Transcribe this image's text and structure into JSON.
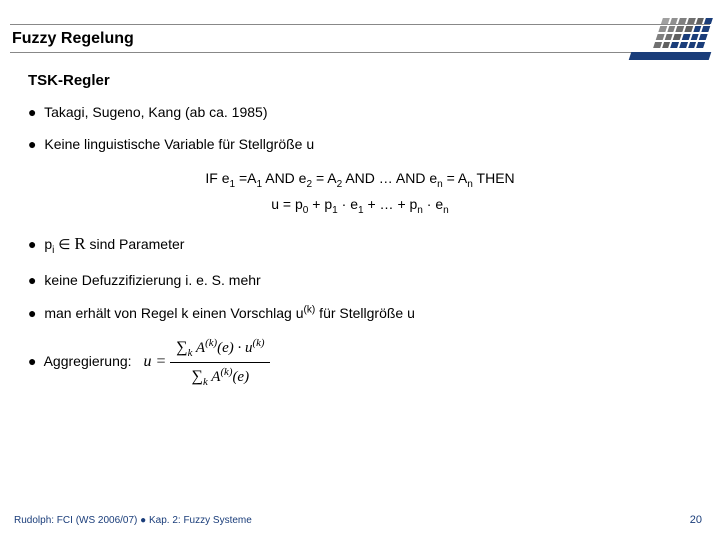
{
  "header": {
    "title": "Fuzzy Regelung"
  },
  "logo": {
    "bar_color": "#1a3d7a",
    "cells": [
      "#a0a0a0",
      "#909090",
      "#808080",
      "#707070",
      "#606060",
      "#1a3d7a",
      "#909090",
      "#808080",
      "#707070",
      "#606060",
      "#1a3d7a",
      "#1a3d7a",
      "#808080",
      "#707070",
      "#606060",
      "#1a3d7a",
      "#1a3d7a",
      "#1a3d7a",
      "#707070",
      "#606060",
      "#1a3d7a",
      "#1a3d7a",
      "#1a3d7a",
      "#1a3d7a"
    ]
  },
  "subtitle": "TSK-Regler",
  "bullets": {
    "b1": "Takagi, Sugeno, Kang  (ab ca. 1985)",
    "b2": "Keine linguistische Variable für Stellgröße u",
    "b3_pre": "p",
    "b3_post": " sind Parameter",
    "b4": "keine Defuzzifizierung i. e. S. mehr",
    "b5_a": "man erhält von Regel k einen Vorschlag u",
    "b5_b": " für Stellgröße u",
    "b6": "Aggregierung:"
  },
  "rule": {
    "line1_a": "IF e",
    "line1_b": " =A",
    "line1_c": " AND e",
    "line1_d": " = A",
    "line1_e": " AND … AND e",
    "line1_f": " = A",
    "line1_g": " THEN",
    "line2_a": "u = p",
    "line2_b": " + p",
    "line2_c": " · e",
    "line2_d": " + … + p",
    "line2_e": " · e"
  },
  "eq": {
    "lhs": "u = ",
    "num_a": "A",
    "num_b": "(e) · u",
    "den_a": "A",
    "den_b": "(e)"
  },
  "footer": {
    "text": "Rudolph: FCI (WS 2006/07)  ●  Kap. 2: Fuzzy Systeme",
    "page": "20"
  },
  "colors": {
    "text": "#000000",
    "accent": "#1a3d7a",
    "rule": "#888888",
    "bg": "#ffffff"
  }
}
